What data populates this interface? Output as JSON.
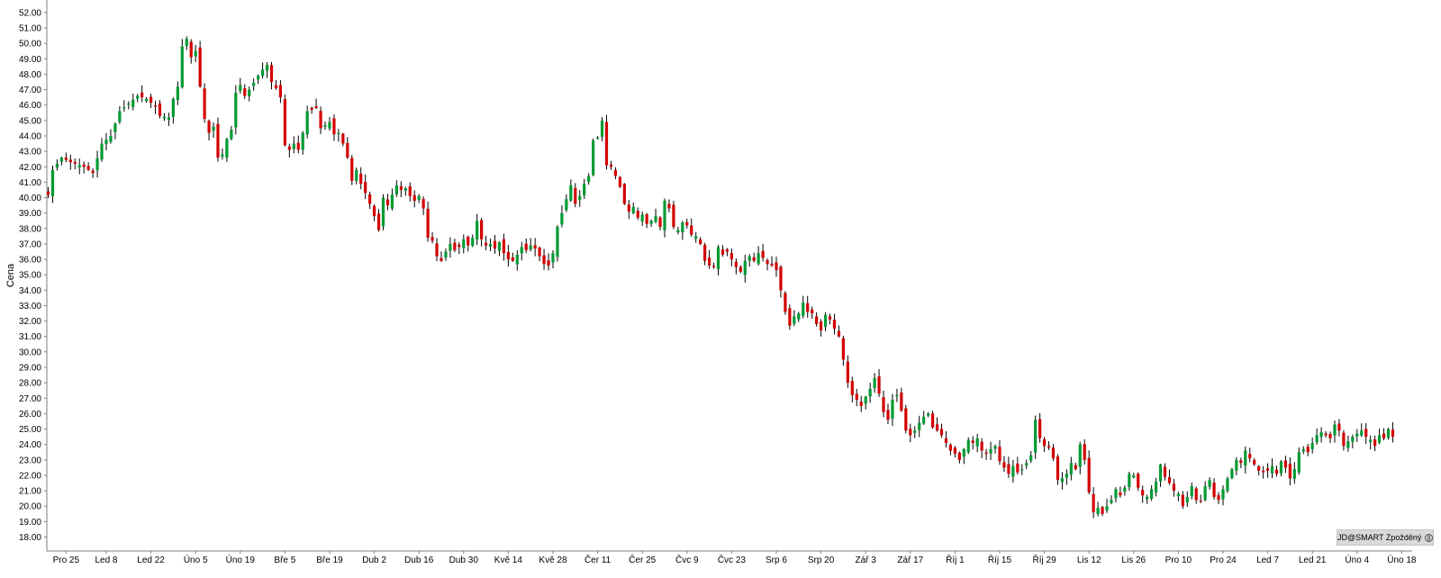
{
  "chart_data": {
    "type": "candlestick",
    "title": "",
    "xlabel": "",
    "ylabel": "Cena",
    "ylim": [
      17.5,
      52.6
    ],
    "y_ticks": [
      18,
      19,
      20,
      21,
      22,
      23,
      24,
      25,
      26,
      27,
      28,
      29,
      30,
      31,
      32,
      33,
      34,
      35,
      36,
      37,
      38,
      39,
      40,
      41,
      42,
      43,
      44,
      45,
      46,
      47,
      48,
      49,
      50,
      51,
      52
    ],
    "x_ticks": [
      {
        "label": "Pro 25",
        "index": 4
      },
      {
        "label": "Led 8",
        "index": 13
      },
      {
        "label": "Led 22",
        "index": 23
      },
      {
        "label": "Úno 5",
        "index": 33
      },
      {
        "label": "Úno 19",
        "index": 43
      },
      {
        "label": "Bře 5",
        "index": 53
      },
      {
        "label": "Bře 19",
        "index": 63
      },
      {
        "label": "Dub 2",
        "index": 73
      },
      {
        "label": "Dub 16",
        "index": 83
      },
      {
        "label": "Dub 30",
        "index": 93
      },
      {
        "label": "Kvě 14",
        "index": 103
      },
      {
        "label": "Kvě 28",
        "index": 113
      },
      {
        "label": "Čer 11",
        "index": 123
      },
      {
        "label": "Čer 25",
        "index": 133
      },
      {
        "label": "Čvc 9",
        "index": 143
      },
      {
        "label": "Čvc 23",
        "index": 153
      },
      {
        "label": "Srp 6",
        "index": 163
      },
      {
        "label": "Srp 20",
        "index": 173
      },
      {
        "label": "Zář 3",
        "index": 183
      },
      {
        "label": "Zář 17",
        "index": 193
      },
      {
        "label": "Říj 1",
        "index": 203
      },
      {
        "label": "Říj 15",
        "index": 213
      },
      {
        "label": "Říj 29",
        "index": 223
      },
      {
        "label": "Lis 12",
        "index": 233
      },
      {
        "label": "Lis 26",
        "index": 243
      },
      {
        "label": "Pro 10",
        "index": 253
      },
      {
        "label": "Pro 24",
        "index": 263
      },
      {
        "label": "Led 7",
        "index": 273
      },
      {
        "label": "Led 21",
        "index": 283
      },
      {
        "label": "Úno 4",
        "index": 293
      },
      {
        "label": "Úno 18",
        "index": 303
      }
    ],
    "colors": {
      "up": "#009a33",
      "down": "#d40000",
      "wick": "#000000",
      "axis": "#7f7f7f"
    },
    "close_path": [
      [
        0,
        40.2
      ],
      [
        1,
        41.8
      ],
      [
        3,
        42.6
      ],
      [
        5,
        42.3
      ],
      [
        8,
        42.0
      ],
      [
        10,
        41.6
      ],
      [
        12,
        43.5
      ],
      [
        14,
        44.0
      ],
      [
        16,
        45.6
      ],
      [
        18,
        46.1
      ],
      [
        20,
        46.6
      ],
      [
        22,
        46.4
      ],
      [
        24,
        45.9
      ],
      [
        25,
        45.3
      ],
      [
        27,
        45.2
      ],
      [
        28,
        46.4
      ],
      [
        29,
        47.2
      ],
      [
        30,
        49.8
      ],
      [
        31,
        50.3
      ],
      [
        32,
        49.1
      ],
      [
        33,
        49.5
      ],
      [
        34,
        47.2
      ],
      [
        35,
        45.1
      ],
      [
        36,
        44.2
      ],
      [
        37,
        44.6
      ],
      [
        38,
        42.6
      ],
      [
        39,
        42.8
      ],
      [
        40,
        43.8
      ],
      [
        41,
        44.4
      ],
      [
        42,
        46.8
      ],
      [
        43,
        47.3
      ],
      [
        44,
        46.6
      ],
      [
        45,
        47.0
      ],
      [
        47,
        47.9
      ],
      [
        48,
        48.3
      ],
      [
        49,
        48.6
      ],
      [
        50,
        47.5
      ],
      [
        51,
        47.1
      ],
      [
        52,
        46.5
      ],
      [
        53,
        43.4
      ],
      [
        54,
        43.1
      ],
      [
        55,
        43.5
      ],
      [
        56,
        43.1
      ],
      [
        57,
        44.2
      ],
      [
        58,
        45.6
      ],
      [
        60,
        45.8
      ],
      [
        61,
        44.5
      ],
      [
        62,
        44.7
      ],
      [
        63,
        44.9
      ],
      [
        64,
        44.1
      ],
      [
        65,
        44.2
      ],
      [
        66,
        43.5
      ],
      [
        67,
        42.6
      ],
      [
        68,
        41.1
      ],
      [
        69,
        41.8
      ],
      [
        70,
        40.9
      ],
      [
        71,
        40.3
      ],
      [
        72,
        39.6
      ],
      [
        73,
        38.8
      ],
      [
        74,
        37.9
      ],
      [
        75,
        40.0
      ],
      [
        76,
        39.5
      ],
      [
        77,
        40.2
      ],
      [
        78,
        40.8
      ],
      [
        79,
        40.5
      ],
      [
        80,
        40.6
      ],
      [
        81,
        40.1
      ],
      [
        82,
        39.8
      ],
      [
        83,
        40.1
      ],
      [
        84,
        39.3
      ],
      [
        85,
        37.4
      ],
      [
        86,
        37.2
      ],
      [
        87,
        36.2
      ],
      [
        88,
        35.9
      ],
      [
        89,
        36.5
      ],
      [
        90,
        37.0
      ],
      [
        91,
        36.6
      ],
      [
        92,
        36.8
      ],
      [
        93,
        37.3
      ],
      [
        94,
        36.9
      ],
      [
        95,
        37.4
      ],
      [
        96,
        38.5
      ],
      [
        97,
        37.3
      ],
      [
        98,
        36.9
      ],
      [
        99,
        37.0
      ],
      [
        100,
        36.7
      ],
      [
        101,
        37.1
      ],
      [
        102,
        36.4
      ],
      [
        103,
        36.0
      ],
      [
        104,
        35.9
      ],
      [
        105,
        36.3
      ],
      [
        106,
        36.8
      ],
      [
        107,
        36.6
      ],
      [
        108,
        36.9
      ],
      [
        109,
        36.7
      ],
      [
        110,
        36.2
      ],
      [
        111,
        35.7
      ],
      [
        112,
        35.6
      ],
      [
        113,
        36.4
      ],
      [
        114,
        38.1
      ],
      [
        115,
        39.0
      ],
      [
        116,
        39.9
      ],
      [
        117,
        40.8
      ],
      [
        118,
        39.6
      ],
      [
        119,
        40.1
      ],
      [
        120,
        40.9
      ],
      [
        121,
        41.4
      ],
      [
        122,
        43.7
      ],
      [
        123,
        43.9
      ],
      [
        124,
        45.0
      ],
      [
        125,
        42.1
      ],
      [
        126,
        42.0
      ],
      [
        127,
        41.4
      ],
      [
        128,
        40.7
      ],
      [
        129,
        39.6
      ],
      [
        130,
        39.1
      ],
      [
        131,
        39.4
      ],
      [
        132,
        38.7
      ],
      [
        133,
        38.9
      ],
      [
        134,
        38.3
      ],
      [
        135,
        38.5
      ],
      [
        136,
        38.8
      ],
      [
        137,
        38.1
      ],
      [
        138,
        39.8
      ],
      [
        139,
        39.3
      ],
      [
        140,
        38.1
      ],
      [
        141,
        37.9
      ],
      [
        142,
        38.4
      ],
      [
        143,
        38.2
      ],
      [
        144,
        37.6
      ],
      [
        145,
        37.5
      ],
      [
        146,
        37.0
      ],
      [
        147,
        35.9
      ],
      [
        148,
        35.6
      ],
      [
        149,
        35.5
      ],
      [
        150,
        36.8
      ],
      [
        151,
        36.3
      ],
      [
        152,
        36.5
      ],
      [
        153,
        36.0
      ],
      [
        154,
        35.5
      ],
      [
        155,
        35.2
      ],
      [
        156,
        35.9
      ],
      [
        157,
        36.2
      ],
      [
        158,
        35.9
      ],
      [
        159,
        36.4
      ],
      [
        160,
        36.1
      ],
      [
        161,
        35.7
      ],
      [
        162,
        35.6
      ],
      [
        163,
        35.3
      ],
      [
        164,
        34.0
      ],
      [
        165,
        32.6
      ],
      [
        166,
        31.7
      ],
      [
        167,
        32.3
      ],
      [
        168,
        32.5
      ],
      [
        169,
        33.2
      ],
      [
        170,
        32.6
      ],
      [
        171,
        32.5
      ],
      [
        172,
        31.8
      ],
      [
        173,
        31.4
      ],
      [
        174,
        32.4
      ],
      [
        175,
        32.1
      ],
      [
        176,
        31.5
      ],
      [
        177,
        31.0
      ],
      [
        178,
        29.5
      ],
      [
        179,
        28.0
      ],
      [
        180,
        27.2
      ],
      [
        181,
        26.9
      ],
      [
        182,
        26.5
      ],
      [
        183,
        27.1
      ],
      [
        184,
        27.6
      ],
      [
        185,
        28.3
      ],
      [
        186,
        27.3
      ],
      [
        187,
        26.1
      ],
      [
        188,
        25.6
      ],
      [
        189,
        26.9
      ],
      [
        190,
        27.2
      ],
      [
        191,
        26.2
      ],
      [
        192,
        24.9
      ],
      [
        193,
        24.6
      ],
      [
        194,
        24.9
      ],
      [
        195,
        25.4
      ],
      [
        196,
        25.8
      ],
      [
        197,
        26.0
      ],
      [
        198,
        25.1
      ],
      [
        199,
        24.9
      ],
      [
        200,
        24.6
      ],
      [
        201,
        24.1
      ],
      [
        202,
        23.6
      ],
      [
        203,
        23.4
      ],
      [
        204,
        23.0
      ],
      [
        205,
        23.7
      ],
      [
        206,
        24.3
      ],
      [
        207,
        24.1
      ],
      [
        208,
        24.4
      ],
      [
        209,
        23.6
      ],
      [
        210,
        23.4
      ],
      [
        211,
        23.7
      ],
      [
        212,
        23.9
      ],
      [
        213,
        22.9
      ],
      [
        214,
        22.5
      ],
      [
        215,
        22.1
      ],
      [
        216,
        22.6
      ],
      [
        217,
        22.2
      ],
      [
        218,
        22.4
      ],
      [
        219,
        22.8
      ],
      [
        220,
        23.3
      ],
      [
        221,
        25.6
      ],
      [
        222,
        24.4
      ],
      [
        223,
        23.9
      ],
      [
        224,
        23.8
      ],
      [
        225,
        23.1
      ],
      [
        226,
        21.7
      ],
      [
        227,
        21.8
      ],
      [
        228,
        22.1
      ],
      [
        229,
        22.8
      ],
      [
        230,
        22.4
      ],
      [
        231,
        24.0
      ],
      [
        232,
        23.0
      ],
      [
        233,
        20.9
      ],
      [
        234,
        19.6
      ],
      [
        235,
        19.9
      ],
      [
        236,
        19.5
      ],
      [
        237,
        20.0
      ],
      [
        238,
        20.4
      ],
      [
        239,
        21.1
      ],
      [
        240,
        20.7
      ],
      [
        241,
        21.2
      ],
      [
        242,
        22.1
      ],
      [
        243,
        22.0
      ],
      [
        244,
        21.2
      ],
      [
        245,
        20.7
      ],
      [
        246,
        20.6
      ],
      [
        247,
        21.1
      ],
      [
        248,
        21.6
      ],
      [
        249,
        22.7
      ],
      [
        250,
        21.9
      ],
      [
        251,
        21.5
      ],
      [
        252,
        21.0
      ],
      [
        253,
        20.8
      ],
      [
        254,
        20.0
      ],
      [
        255,
        20.6
      ],
      [
        256,
        21.3
      ],
      [
        257,
        20.4
      ],
      [
        258,
        20.3
      ],
      [
        259,
        21.3
      ],
      [
        260,
        21.7
      ],
      [
        261,
        20.6
      ],
      [
        262,
        20.4
      ],
      [
        263,
        21.1
      ],
      [
        264,
        21.8
      ],
      [
        265,
        22.4
      ],
      [
        266,
        23.0
      ],
      [
        267,
        22.8
      ],
      [
        268,
        23.6
      ],
      [
        269,
        23.1
      ],
      [
        270,
        22.7
      ],
      [
        271,
        22.3
      ],
      [
        272,
        22.2
      ],
      [
        273,
        22.3
      ],
      [
        274,
        22.6
      ],
      [
        275,
        22.1
      ],
      [
        276,
        22.9
      ],
      [
        277,
        22.5
      ],
      [
        278,
        21.8
      ],
      [
        279,
        22.4
      ],
      [
        280,
        23.5
      ],
      [
        281,
        23.7
      ],
      [
        282,
        23.5
      ],
      [
        283,
        24.1
      ],
      [
        284,
        24.6
      ],
      [
        285,
        24.8
      ],
      [
        286,
        24.6
      ],
      [
        287,
        24.4
      ],
      [
        288,
        25.3
      ],
      [
        289,
        24.9
      ],
      [
        290,
        23.9
      ],
      [
        291,
        24.2
      ],
      [
        292,
        24.5
      ],
      [
        293,
        24.7
      ],
      [
        294,
        24.9
      ],
      [
        295,
        24.5
      ],
      [
        296,
        24.3
      ],
      [
        297,
        23.9
      ],
      [
        298,
        24.6
      ],
      [
        299,
        24.4
      ],
      [
        300,
        25.0
      ],
      [
        301,
        24.5
      ]
    ]
  },
  "watermark": {
    "text": "JD@SMART Zpožděný"
  }
}
